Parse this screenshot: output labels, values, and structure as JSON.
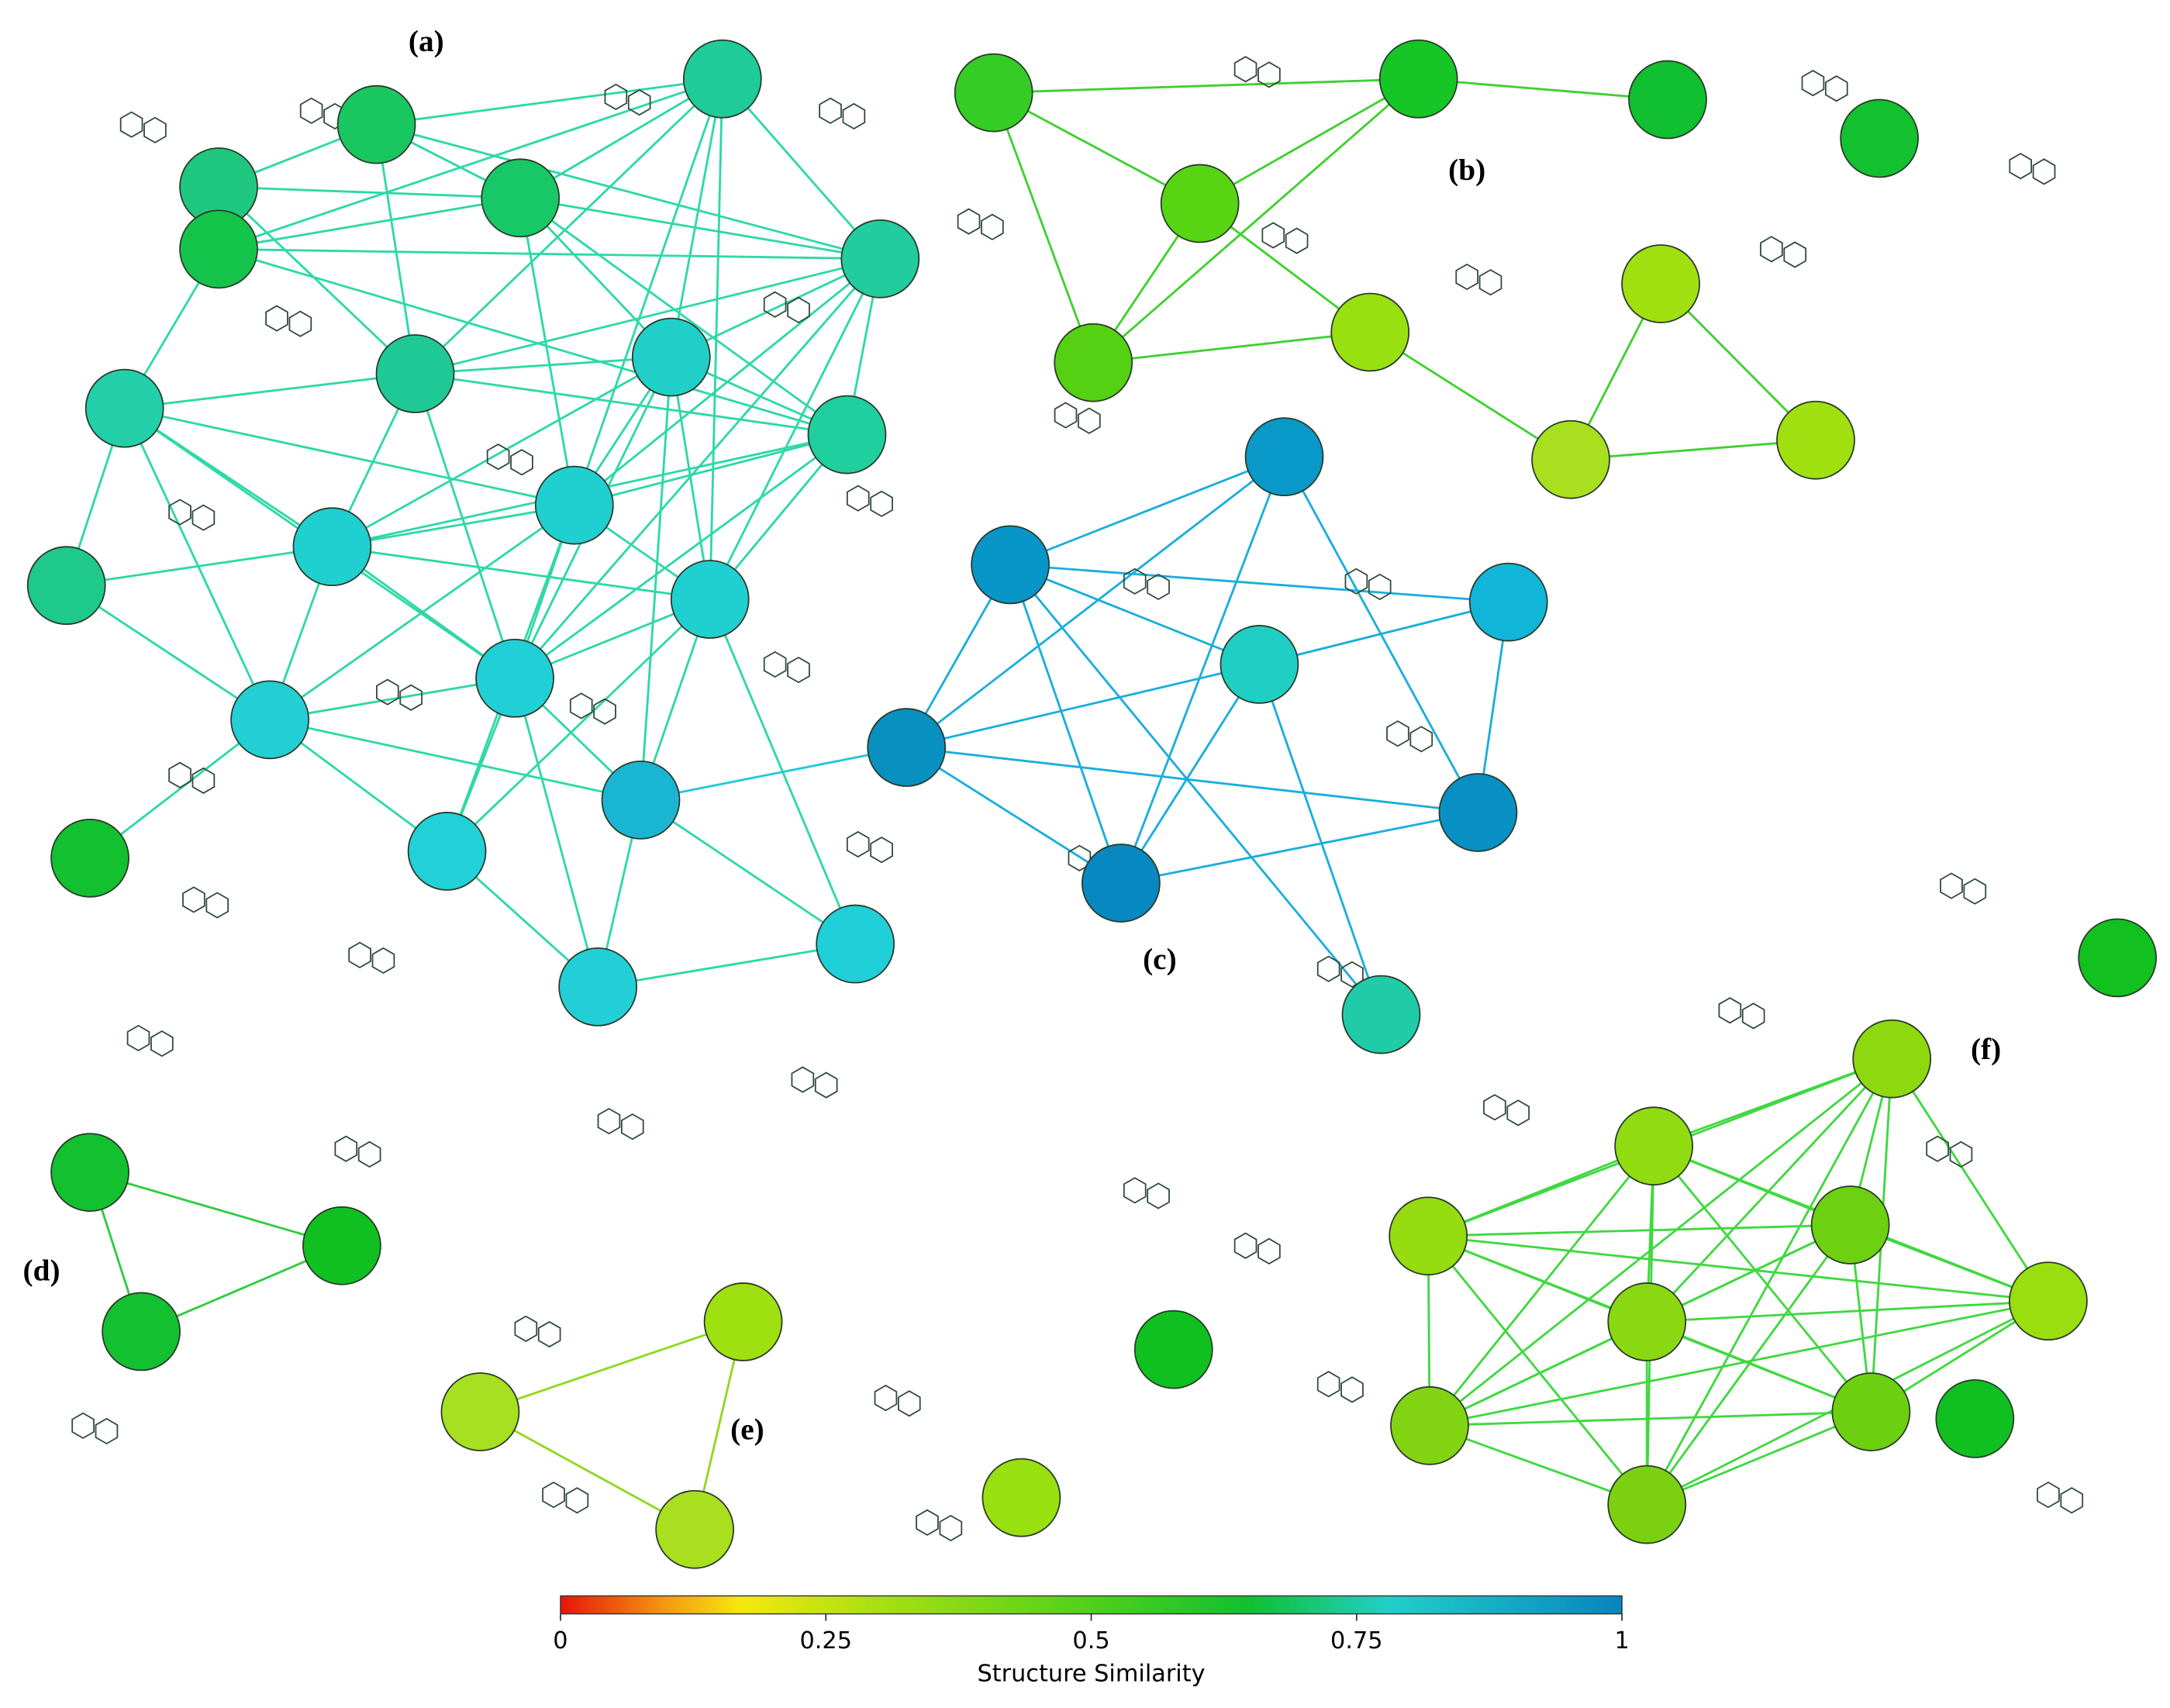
{
  "labels": [
    "(a)",
    "(b)",
    "(c)",
    "(d)",
    "(e)",
    "(f)"
  ],
  "colorbar": {
    "title": "Structure Similarity",
    "lim": [
      0,
      1
    ],
    "ticks": [
      0,
      0.25,
      0.5,
      0.75,
      1
    ]
  }
}
